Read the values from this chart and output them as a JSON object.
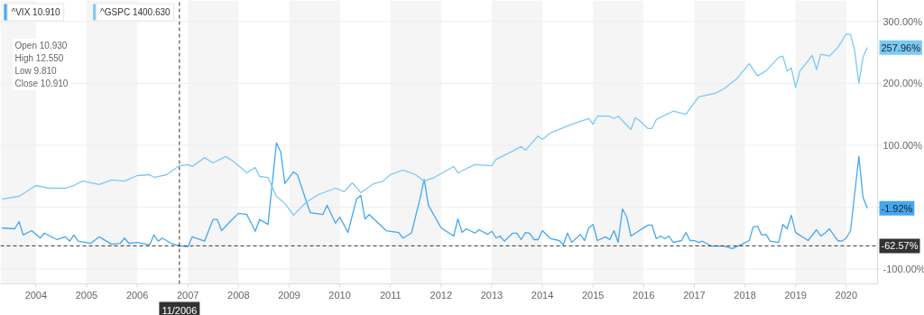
{
  "chart_data": {
    "type": "line",
    "x": [
      "2003-05",
      "2003-08",
      "2003-09",
      "2003-10",
      "2003-12",
      "2004-02",
      "2004-03",
      "2004-06",
      "2004-08",
      "2004-09",
      "2004-10",
      "2004-11",
      "2005-02",
      "2005-04",
      "2005-07",
      "2005-09",
      "2005-10",
      "2005-11",
      "2006-01",
      "2006-04",
      "2006-05",
      "2006-06",
      "2006-07",
      "2006-09",
      "2006-11",
      "2007-01",
      "2007-02",
      "2007-05",
      "2007-07",
      "2007-08",
      "2007-09",
      "2007-11",
      "2008-01",
      "2008-03",
      "2008-05",
      "2008-06",
      "2008-08",
      "2008-10",
      "2008-11",
      "2008-12",
      "2009-02",
      "2009-03",
      "2009-06",
      "2009-09",
      "2009-10",
      "2009-12",
      "2010-01",
      "2010-03",
      "2010-05",
      "2010-06",
      "2010-07",
      "2010-08",
      "2010-12",
      "2011-03",
      "2011-04",
      "2011-06",
      "2011-08",
      "2011-09",
      "2011-10",
      "2012-01",
      "2012-04",
      "2012-05",
      "2012-06",
      "2012-07",
      "2012-09",
      "2012-10",
      "2012-12",
      "2013-01",
      "2013-02",
      "2013-03",
      "2013-04",
      "2013-06",
      "2013-07",
      "2013-08",
      "2013-09",
      "2013-10",
      "2013-11",
      "2013-12",
      "2014-01",
      "2014-03",
      "2014-05",
      "2014-06",
      "2014-07",
      "2014-08",
      "2014-10",
      "2014-11",
      "2014-12",
      "2015-01",
      "2015-02",
      "2015-04",
      "2015-05",
      "2015-06",
      "2015-07",
      "2015-08",
      "2015-09",
      "2015-10",
      "2016-02",
      "2016-03",
      "2016-04",
      "2016-05",
      "2016-06",
      "2016-07",
      "2016-08",
      "2016-10",
      "2016-11",
      "2016-12",
      "2017-01",
      "2017-02",
      "2017-03",
      "2017-05",
      "2017-08",
      "2017-10",
      "2017-12",
      "2018-02",
      "2018-03",
      "2018-04",
      "2018-05",
      "2018-06",
      "2018-07",
      "2018-09",
      "2018-10",
      "2018-11",
      "2018-12",
      "2019-01",
      "2019-04",
      "2019-06",
      "2019-07",
      "2019-08",
      "2019-09",
      "2019-11",
      "2019-12",
      "2020-01",
      "2020-02",
      "2020-04",
      "2020-05",
      "2020-06"
    ],
    "series": [
      {
        "name": "^VIX 10.910",
        "color": "#45a7f0",
        "values": [
          -33.6,
          -35,
          -23.4,
          -45,
          -38,
          -50,
          -42,
          -52.5,
          -48,
          -55,
          -45,
          -55,
          -58.4,
          -48,
          -60,
          -58.4,
          -50,
          -58.4,
          -57,
          -61,
          -45,
          -55,
          -50,
          -58.4,
          -62.57,
          -64,
          -48,
          -55,
          -20,
          -20,
          -38,
          -23.4,
          -10,
          -12,
          -39,
          -20,
          -28,
          104,
          89,
          38,
          57,
          52.5,
          -8.8,
          -12,
          3,
          -26,
          -16,
          -41,
          13,
          19,
          -19,
          -12,
          -38,
          -41,
          -50,
          -42,
          13,
          45,
          3,
          -33.6,
          -46.7,
          -19,
          -41,
          -35,
          -42,
          -36.5,
          -44,
          -39,
          -50,
          -46.7,
          -55,
          -42,
          -42,
          -52.5,
          -41,
          -42,
          -52.5,
          -52.5,
          -38,
          -51,
          -54,
          -61,
          -42,
          -57,
          -44,
          -54,
          -33.6,
          -28,
          -54,
          -48,
          -52.5,
          -38,
          -57,
          -3,
          -16,
          -46.7,
          -29,
          -29,
          -51,
          -46.7,
          -51,
          -46.7,
          -57,
          -54,
          -41,
          -54,
          -54,
          -57,
          -55,
          -62.8,
          -62.8,
          -67,
          -61,
          -54,
          -32,
          -30.7,
          -45,
          -44,
          -55,
          -57,
          -28,
          -35,
          -13,
          -41,
          -54,
          -36.5,
          -46.7,
          -42,
          -35,
          -54,
          -55,
          -50,
          -38,
          82,
          16,
          -1.92
        ]
      },
      {
        "name": "^GSPC 1400.630",
        "color": "#7cc9f7",
        "x": [
          "2003-05",
          "2003-09",
          "2004-01",
          "2004-04",
          "2004-08",
          "2004-10",
          "2004-12",
          "2005-04",
          "2005-07",
          "2005-10",
          "2006-01",
          "2006-04",
          "2006-05",
          "2006-08",
          "2006-11",
          "2007-01",
          "2007-02",
          "2007-05",
          "2007-07",
          "2007-10",
          "2007-12",
          "2008-03",
          "2008-05",
          "2008-06",
          "2008-08",
          "2008-10",
          "2008-12",
          "2009-02",
          "2009-05",
          "2009-08",
          "2009-12",
          "2010-02",
          "2010-04",
          "2010-06",
          "2010-09",
          "2010-11",
          "2011-01",
          "2011-04",
          "2011-07",
          "2011-09",
          "2011-11",
          "2012-04",
          "2012-05",
          "2012-09",
          "2013-01",
          "2013-02",
          "2013-06",
          "2013-08",
          "2013-09",
          "2013-12",
          "2014-01",
          "2014-03",
          "2014-07",
          "2014-08",
          "2014-12",
          "2015-01",
          "2015-02",
          "2015-05",
          "2015-06",
          "2015-07",
          "2015-10",
          "2015-11",
          "2015-12",
          "2016-02",
          "2016-03",
          "2016-04",
          "2016-08",
          "2016-11",
          "2017-02",
          "2017-06",
          "2017-08",
          "2017-11",
          "2018-02",
          "2018-04",
          "2018-06",
          "2018-09",
          "2018-10",
          "2018-11",
          "2018-12",
          "2019-01",
          "2019-02",
          "2019-05",
          "2019-06",
          "2019-07",
          "2019-09",
          "2019-11",
          "2020-01",
          "2020-02",
          "2020-03",
          "2020-04",
          "2020-05",
          "2020-06"
        ],
        "values": [
          13,
          17.5,
          35,
          30.6,
          30.6,
          35,
          42,
          36.5,
          44,
          42,
          51,
          52.5,
          48,
          52.5,
          67,
          68.6,
          65.7,
          80,
          71.5,
          81.8,
          73,
          55.5,
          64,
          49.6,
          48,
          17.5,
          6,
          -13,
          7.3,
          20.4,
          30.6,
          25,
          39.4,
          23.4,
          38,
          41,
          52.5,
          60,
          52.5,
          42,
          46.7,
          65.7,
          55.5,
          68.6,
          67,
          77,
          90.5,
          98,
          92,
          115,
          109.5,
          120,
          131,
          134,
          143,
          134,
          147,
          147,
          143,
          147,
          125.5,
          144.5,
          140,
          127,
          127,
          141.6,
          155,
          150,
          178,
          184,
          191,
          207,
          232,
          212,
          220,
          242,
          244,
          220,
          225,
          193,
          220,
          245,
          222,
          247,
          244,
          258,
          280,
          279,
          254,
          200,
          242,
          257.96
        ]
      }
    ],
    "xlim": [
      "2003-04-20",
      "2020-08-14"
    ],
    "xticks": [
      "2004",
      "2005",
      "2006",
      "2007",
      "2008",
      "2009",
      "2010",
      "2011",
      "2012",
      "2013",
      "2014",
      "2015",
      "2016",
      "2017",
      "2018",
      "2019",
      "2020"
    ],
    "ylim": [
      -124,
      334
    ],
    "yticks": [
      {
        "value": -100,
        "label": "-100.00%"
      },
      {
        "value": 0,
        "label": null
      },
      {
        "value": 100,
        "label": "100.00%"
      },
      {
        "value": 200,
        "label": "200.00%"
      },
      {
        "value": 300,
        "label": "300.00%"
      }
    ],
    "grid": "y",
    "legend": "top left",
    "marker": "none",
    "line_style": "solid",
    "bands": [
      {
        "axis": "x",
        "from": "2003-04-20",
        "to": "2004",
        "color": "#f5f5f5"
      },
      {
        "axis": "x",
        "from": "2005",
        "to": "2006",
        "color": "#f5f5f5"
      },
      {
        "axis": "x",
        "from": "2007",
        "to": "2008",
        "color": "#f5f5f5"
      },
      {
        "axis": "x",
        "from": "2009",
        "to": "2010",
        "color": "#f5f5f5"
      },
      {
        "axis": "x",
        "from": "2011",
        "to": "2012",
        "color": "#f5f5f5"
      },
      {
        "axis": "x",
        "from": "2013",
        "to": "2014",
        "color": "#f5f5f5"
      },
      {
        "axis": "x",
        "from": "2015",
        "to": "2016",
        "color": "#f5f5f5"
      },
      {
        "axis": "x",
        "from": "2017",
        "to": "2018",
        "color": "#f5f5f5"
      },
      {
        "axis": "x",
        "from": "2019",
        "to": "2020",
        "color": "#f5f5f5"
      }
    ],
    "ref_lines": [
      {
        "axis": "x",
        "value": "2006-11",
        "label": "11/2006",
        "color": "#333333",
        "line_style": "dashed"
      },
      {
        "axis": "y",
        "value": -62.57,
        "label": "-62.57%",
        "color": "#333333",
        "line_style": "dashed"
      }
    ],
    "annotations": [
      "Open 10.930",
      "High 12.550",
      "Low 9.810",
      "Close 10.910",
      {
        "text": "257.96%",
        "x": "2020-06",
        "y": 257.96
      },
      {
        "text": "-1.92%",
        "x": "2020-06",
        "y": -1.92
      }
    ]
  }
}
